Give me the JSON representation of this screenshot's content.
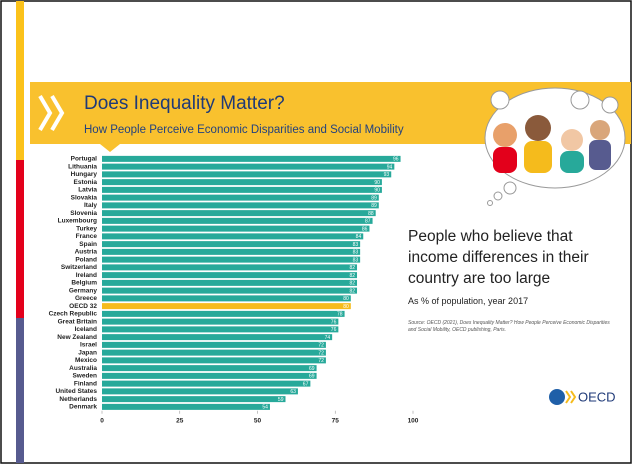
{
  "header": {
    "title": "Does Inequality Matter?",
    "subtitle": "How People Perceive Economic Disparities and Social Mobility"
  },
  "chart_data": {
    "type": "bar",
    "orientation": "horizontal",
    "categories": [
      "Portugal",
      "Lithuania",
      "Hungary",
      "Estonia",
      "Latvia",
      "Slovakia",
      "Italy",
      "Slovenia",
      "Luxembourg",
      "Turkey",
      "France",
      "Spain",
      "Austria",
      "Poland",
      "Switzerland",
      "Ireland",
      "Belgium",
      "Germany",
      "Greece",
      "OECD 32",
      "Czech Republic",
      "Great Britain",
      "Iceland",
      "New Zealand",
      "Israel",
      "Japan",
      "Mexico",
      "Australia",
      "Sweden",
      "Finland",
      "United States",
      "Netherlands",
      "Denmark"
    ],
    "values": [
      96,
      94,
      93,
      90,
      90,
      89,
      89,
      88,
      87,
      86,
      84,
      83,
      83,
      83,
      82,
      82,
      82,
      82,
      80,
      80,
      78,
      76,
      76,
      74,
      72,
      72,
      72,
      69,
      69,
      67,
      63,
      59,
      54
    ],
    "color": "#27a99a",
    "highlight": {
      "category": "OECD 32",
      "color": "#f5bb1c"
    },
    "xlim": [
      0,
      100
    ],
    "xticks": [
      0,
      25,
      50,
      75,
      100
    ]
  },
  "aside": {
    "heading": "People who believe that income differences in their country are too large",
    "subheading": "As % of population, year 2017",
    "source": "Source: OECD (2021), Does Inequality Matter? How People Perceive Economic Disparities and Social Mobility, OECD publishing, Paris."
  },
  "logo": "OECD"
}
